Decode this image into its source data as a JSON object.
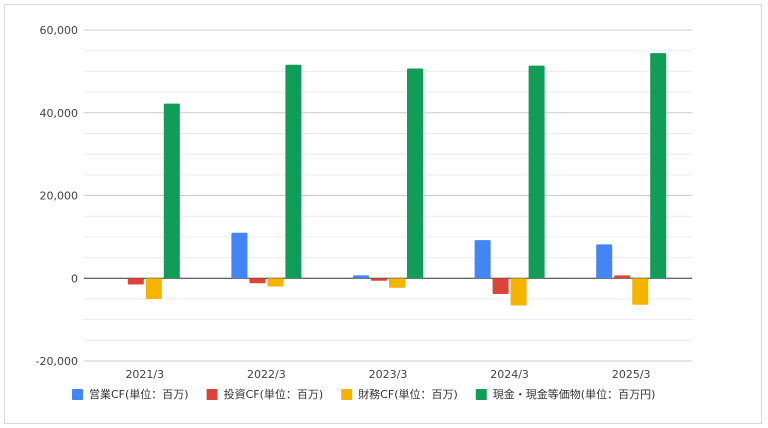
{
  "chart_data": {
    "type": "bar",
    "categories": [
      "2021/3",
      "2022/3",
      "2023/3",
      "2024/3",
      "2025/3"
    ],
    "series": [
      {
        "name": "営業CF(単位：百万)",
        "color": "#4285f4",
        "values": [
          0,
          11000,
          700,
          9200,
          8200
        ]
      },
      {
        "name": "投資CF(単位：百万)",
        "color": "#db4437",
        "values": [
          -1500,
          -1200,
          -600,
          -3800,
          700
        ]
      },
      {
        "name": "財務CF(単位：百万)",
        "color": "#f4b400",
        "values": [
          -5000,
          -2000,
          -2300,
          -6600,
          -6400
        ]
      },
      {
        "name": "現金・現金等価物(単位：百万円)",
        "color": "#0f9d58",
        "values": [
          42200,
          51600,
          50700,
          51400,
          54400
        ]
      }
    ],
    "ylim": [
      -20000,
      60000
    ],
    "yticks": [
      "-20,000",
      "0",
      "20,000",
      "40,000",
      "60,000"
    ],
    "ytick_values": [
      -20000,
      0,
      20000,
      40000,
      60000
    ],
    "xlabel": "",
    "ylabel": "",
    "title": "",
    "grid": true,
    "legend_position": "bottom"
  }
}
